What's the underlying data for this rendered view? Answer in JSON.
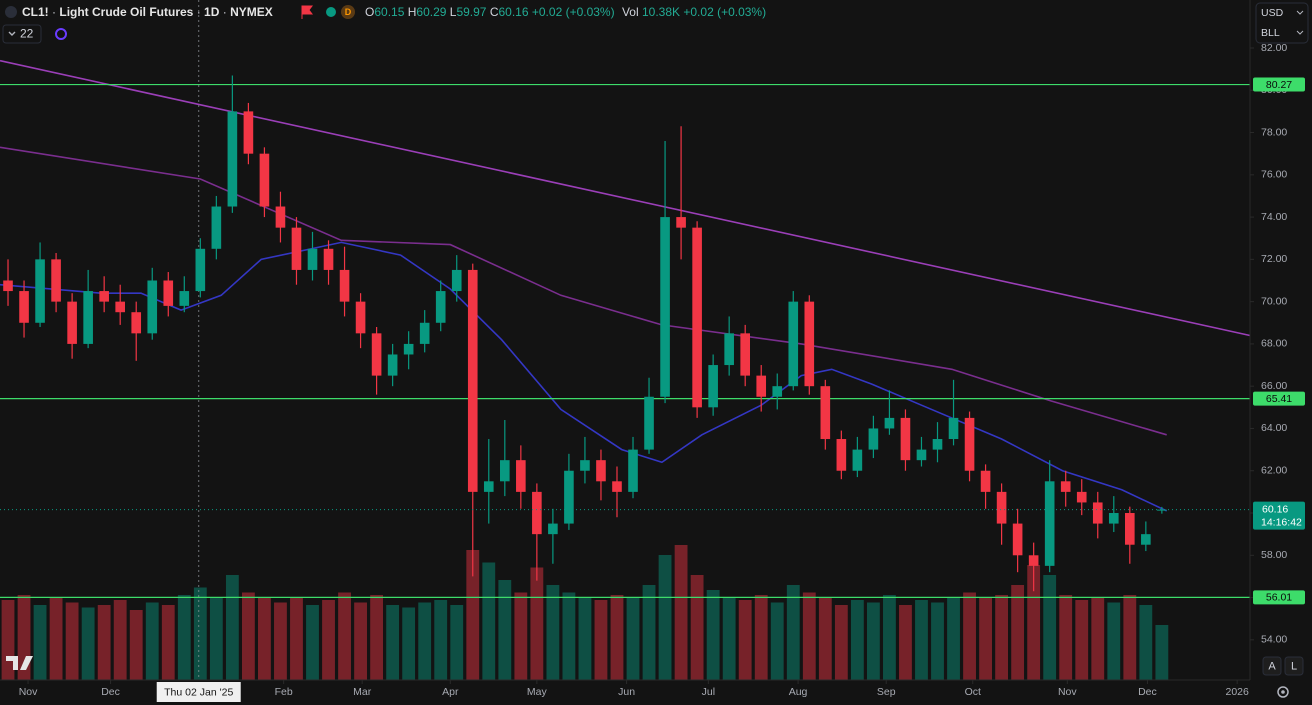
{
  "header": {
    "symbol": "CL1!",
    "separator": "·",
    "title": "Light Crude Oil Futures",
    "interval": "1D",
    "exchange": "NYMEX",
    "session_badge": "D",
    "open_label": "O",
    "high_label": "H",
    "low_label": "L",
    "close_label": "C",
    "change": "+0.02 (+0.03%)",
    "volume_label": "Vol",
    "volume": "10.38K",
    "volume_change": "+0.02 (+0.03%)",
    "indicator_count": "22",
    "currency": "USD",
    "unit": "BLL",
    "countdown": "14:16:42",
    "auto_button": "A",
    "log_button": "L"
  },
  "chart_data": {
    "type": "candlestick",
    "xlim": [
      -0.5,
      77.5
    ],
    "ylim": [
      52.1,
      84.27
    ],
    "vlim": [
      0,
      600
    ],
    "grid": false,
    "up_color": "#089981",
    "down_color": "#f23645",
    "yticks": [
      {
        "value": 54,
        "label": "54.00"
      },
      {
        "value": 56,
        "label": "56.00"
      },
      {
        "value": 58,
        "label": "58.00"
      },
      {
        "value": 60,
        "label": "60.00"
      },
      {
        "value": 62,
        "label": "62.00"
      },
      {
        "value": 64,
        "label": "64.00"
      },
      {
        "value": 66,
        "label": "66.00"
      },
      {
        "value": 68,
        "label": "68.00"
      },
      {
        "value": 70,
        "label": "70.00"
      },
      {
        "value": 72,
        "label": "72.00"
      },
      {
        "value": 74,
        "label": "74.00"
      },
      {
        "value": 76,
        "label": "76.00"
      },
      {
        "value": 78,
        "label": "78.00"
      },
      {
        "value": 80,
        "label": "80.00"
      },
      {
        "value": 82,
        "label": "82.00"
      }
    ],
    "xticks": [
      {
        "value": 1.25,
        "label": "Nov"
      },
      {
        "value": 6.4,
        "label": "Dec"
      },
      {
        "value": 17.2,
        "label": "Feb"
      },
      {
        "value": 22.1,
        "label": "Mar"
      },
      {
        "value": 27.6,
        "label": "Apr"
      },
      {
        "value": 33,
        "label": "May"
      },
      {
        "value": 38.6,
        "label": "Jun"
      },
      {
        "value": 43.7,
        "label": "Jul"
      },
      {
        "value": 49.3,
        "label": "Aug"
      },
      {
        "value": 54.8,
        "label": "Sep"
      },
      {
        "value": 60.2,
        "label": "Oct"
      },
      {
        "value": 66.1,
        "label": "Nov"
      },
      {
        "value": 71.1,
        "label": "Dec"
      },
      {
        "value": 76.7,
        "label": "2026"
      }
    ],
    "crosshair": {
      "value": 11.9,
      "label": "Thu 02 Jan '25"
    },
    "open": [
      71.0,
      70.5,
      69.0,
      72.0,
      70.0,
      68.0,
      70.5,
      70.0,
      69.5,
      68.5,
      71.0,
      69.8,
      70.5,
      72.5,
      74.5,
      79.0,
      77.0,
      74.5,
      73.5,
      71.5,
      72.5,
      71.5,
      70.0,
      68.5,
      66.5,
      67.5,
      68.0,
      69.0,
      70.5,
      71.5,
      61.0,
      61.5,
      62.5,
      61.0,
      59.0,
      59.5,
      62.0,
      62.5,
      61.5,
      61.0,
      63.0,
      65.5,
      74.0,
      73.5,
      65.0,
      67.0,
      68.5,
      66.5,
      65.5,
      66.0,
      70.0,
      66.0,
      63.5,
      62.0,
      63.0,
      64.0,
      64.5,
      62.5,
      63.0,
      63.5,
      64.5,
      62.0,
      61.0,
      59.5,
      58.0,
      57.5,
      61.5,
      61.0,
      60.5,
      59.5,
      60.0,
      58.5,
      60.15
    ],
    "high": [
      72.0,
      71.0,
      72.8,
      72.3,
      70.4,
      71.5,
      71.2,
      70.8,
      70.0,
      71.6,
      71.4,
      71.2,
      73.0,
      75.0,
      80.7,
      79.4,
      77.3,
      75.2,
      74.0,
      73.3,
      72.9,
      72.6,
      70.4,
      68.8,
      68.0,
      68.6,
      69.6,
      71.0,
      72.2,
      71.8,
      63.5,
      64.4,
      63.2,
      61.4,
      60.2,
      62.8,
      63.6,
      63.0,
      62.2,
      63.6,
      66.4,
      77.6,
      78.3,
      73.8,
      67.5,
      69.3,
      68.9,
      67.0,
      66.6,
      70.5,
      70.3,
      66.3,
      63.9,
      63.6,
      64.6,
      65.8,
      64.9,
      63.6,
      64.3,
      66.3,
      64.8,
      62.3,
      61.4,
      60.2,
      58.6,
      62.5,
      62.0,
      61.6,
      61.0,
      60.8,
      60.3,
      59.6,
      60.29
    ],
    "low": [
      69.8,
      68.3,
      68.8,
      69.5,
      67.3,
      67.8,
      69.5,
      68.9,
      67.2,
      68.2,
      69.3,
      69.5,
      70.2,
      72.0,
      74.2,
      76.5,
      74.0,
      72.8,
      70.8,
      71.0,
      70.8,
      69.3,
      67.8,
      65.6,
      66.0,
      66.8,
      67.6,
      68.6,
      70.0,
      57.0,
      59.5,
      60.8,
      60.2,
      56.8,
      57.6,
      59.2,
      61.4,
      60.6,
      59.8,
      60.7,
      62.8,
      65.2,
      72.0,
      64.5,
      64.6,
      66.5,
      66.0,
      64.8,
      64.9,
      65.8,
      65.6,
      63.0,
      61.6,
      61.7,
      62.6,
      63.7,
      62.0,
      62.2,
      62.4,
      63.2,
      61.5,
      60.2,
      58.5,
      57.2,
      56.3,
      57.2,
      60.3,
      59.9,
      58.8,
      59.1,
      57.6,
      58.2,
      59.97
    ],
    "close": [
      70.5,
      69.0,
      72.0,
      70.0,
      68.0,
      70.5,
      70.0,
      69.5,
      68.5,
      71.0,
      69.8,
      70.5,
      72.5,
      74.5,
      79.0,
      77.0,
      74.5,
      73.5,
      71.5,
      72.5,
      71.5,
      70.0,
      68.5,
      66.5,
      67.5,
      68.0,
      69.0,
      70.5,
      71.5,
      61.0,
      61.5,
      62.5,
      61.0,
      59.0,
      59.5,
      62.0,
      62.5,
      61.5,
      61.0,
      63.0,
      65.5,
      74.0,
      73.5,
      65.0,
      67.0,
      68.5,
      66.5,
      65.5,
      66.0,
      70.0,
      66.0,
      63.5,
      62.0,
      63.0,
      64.0,
      64.5,
      62.5,
      63.0,
      63.5,
      64.5,
      62.0,
      61.0,
      59.5,
      58.0,
      57.5,
      61.5,
      61.0,
      60.5,
      59.5,
      60.0,
      58.5,
      59.0,
      60.16
    ],
    "volume": [
      320,
      340,
      300,
      330,
      310,
      290,
      300,
      320,
      280,
      310,
      300,
      340,
      370,
      330,
      420,
      350,
      330,
      310,
      330,
      300,
      320,
      350,
      310,
      340,
      300,
      290,
      310,
      320,
      300,
      520,
      470,
      400,
      350,
      450,
      380,
      350,
      330,
      320,
      340,
      330,
      380,
      500,
      540,
      420,
      360,
      330,
      320,
      340,
      310,
      380,
      350,
      330,
      300,
      320,
      310,
      340,
      300,
      320,
      310,
      330,
      350,
      330,
      340,
      380,
      460,
      420,
      340,
      320,
      330,
      310,
      340,
      300,
      220
    ],
    "lines": [
      {
        "color": "#9b3fb8",
        "x": [
          -0.5,
          77.5
        ],
        "values": [
          81.4,
          68.4
        ]
      },
      {
        "color": "#7a2e8e",
        "x": [
          -0.5,
          12,
          20.8,
          27.6,
          34.5,
          40.8,
          49.5,
          58.9,
          65.1,
          72.3
        ],
        "values": [
          77.3,
          75.8,
          72.9,
          72.7,
          70.3,
          68.9,
          68.0,
          66.8,
          65.3,
          63.7
        ]
      },
      {
        "color": "#3437c4",
        "x": [
          -0.5,
          5.8,
          8.3,
          10.8,
          13.3,
          15.8,
          20.8,
          24.5,
          27.6,
          30.8,
          34.5,
          38.3,
          40.8,
          43.3,
          47,
          49.5,
          51.4,
          53.9,
          57,
          62,
          65.8,
          69.5,
          72.3
        ],
        "values": [
          70.8,
          70.4,
          70.4,
          69.6,
          70.3,
          72.0,
          72.8,
          72.2,
          70.6,
          68.2,
          64.9,
          63.0,
          62.4,
          63.7,
          65.1,
          66.5,
          66.8,
          66.1,
          65.1,
          63.5,
          62.0,
          61.1,
          60.1
        ]
      }
    ],
    "levels": [
      {
        "value": 80.27,
        "color": "#3ddc6a"
      },
      {
        "value": 65.41,
        "color": "#3ddc6a"
      },
      {
        "value": 56.01,
        "color": "#3ddc6a"
      }
    ]
  }
}
